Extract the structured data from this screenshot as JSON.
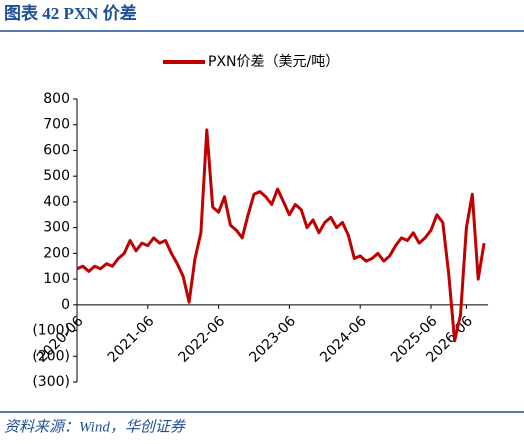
{
  "header": {
    "title": "图表 42 PXN 价差"
  },
  "chart_data": {
    "type": "line",
    "categories": [
      "2020-06",
      null,
      null,
      null,
      null,
      null,
      null,
      null,
      null,
      null,
      null,
      null,
      "2021-06",
      null,
      null,
      null,
      null,
      null,
      null,
      null,
      null,
      null,
      null,
      null,
      "2022-06",
      null,
      null,
      null,
      null,
      null,
      null,
      null,
      null,
      null,
      null,
      null,
      "2023-06",
      null,
      null,
      null,
      null,
      null,
      null,
      null,
      null,
      null,
      null,
      null,
      "2024-06",
      null,
      null,
      null,
      null,
      null,
      null,
      null,
      null,
      null,
      null,
      null,
      "2025-06",
      null,
      null,
      null,
      null,
      null,
      "2026-06",
      null,
      null,
      null
    ],
    "series": [
      {
        "name": "PXN价差（美元/吨）",
        "color": "#c00000",
        "values": [
          140,
          150,
          130,
          150,
          140,
          160,
          150,
          180,
          200,
          250,
          210,
          240,
          230,
          260,
          240,
          250,
          200,
          160,
          110,
          10,
          180,
          280,
          680,
          380,
          360,
          420,
          310,
          290,
          260,
          350,
          430,
          440,
          420,
          390,
          450,
          400,
          350,
          390,
          370,
          300,
          330,
          280,
          320,
          340,
          300,
          320,
          270,
          180,
          190,
          170,
          180,
          200,
          170,
          190,
          230,
          260,
          250,
          280,
          240,
          260,
          290,
          350,
          320,
          120,
          -140,
          -40,
          300,
          430,
          100,
          240
        ]
      }
    ],
    "ylim": [
      -300,
      800
    ],
    "yticks": [
      800,
      700,
      600,
      500,
      400,
      300,
      200,
      100,
      0,
      {
        "value": -100,
        "label": "(100)"
      },
      {
        "value": -200,
        "label": "(200)"
      },
      {
        "value": -300,
        "label": "(300)"
      }
    ],
    "negative_tick_color": "#c00000",
    "legend": "top"
  },
  "footer": {
    "source": "资料来源：Wind，华创证券"
  }
}
